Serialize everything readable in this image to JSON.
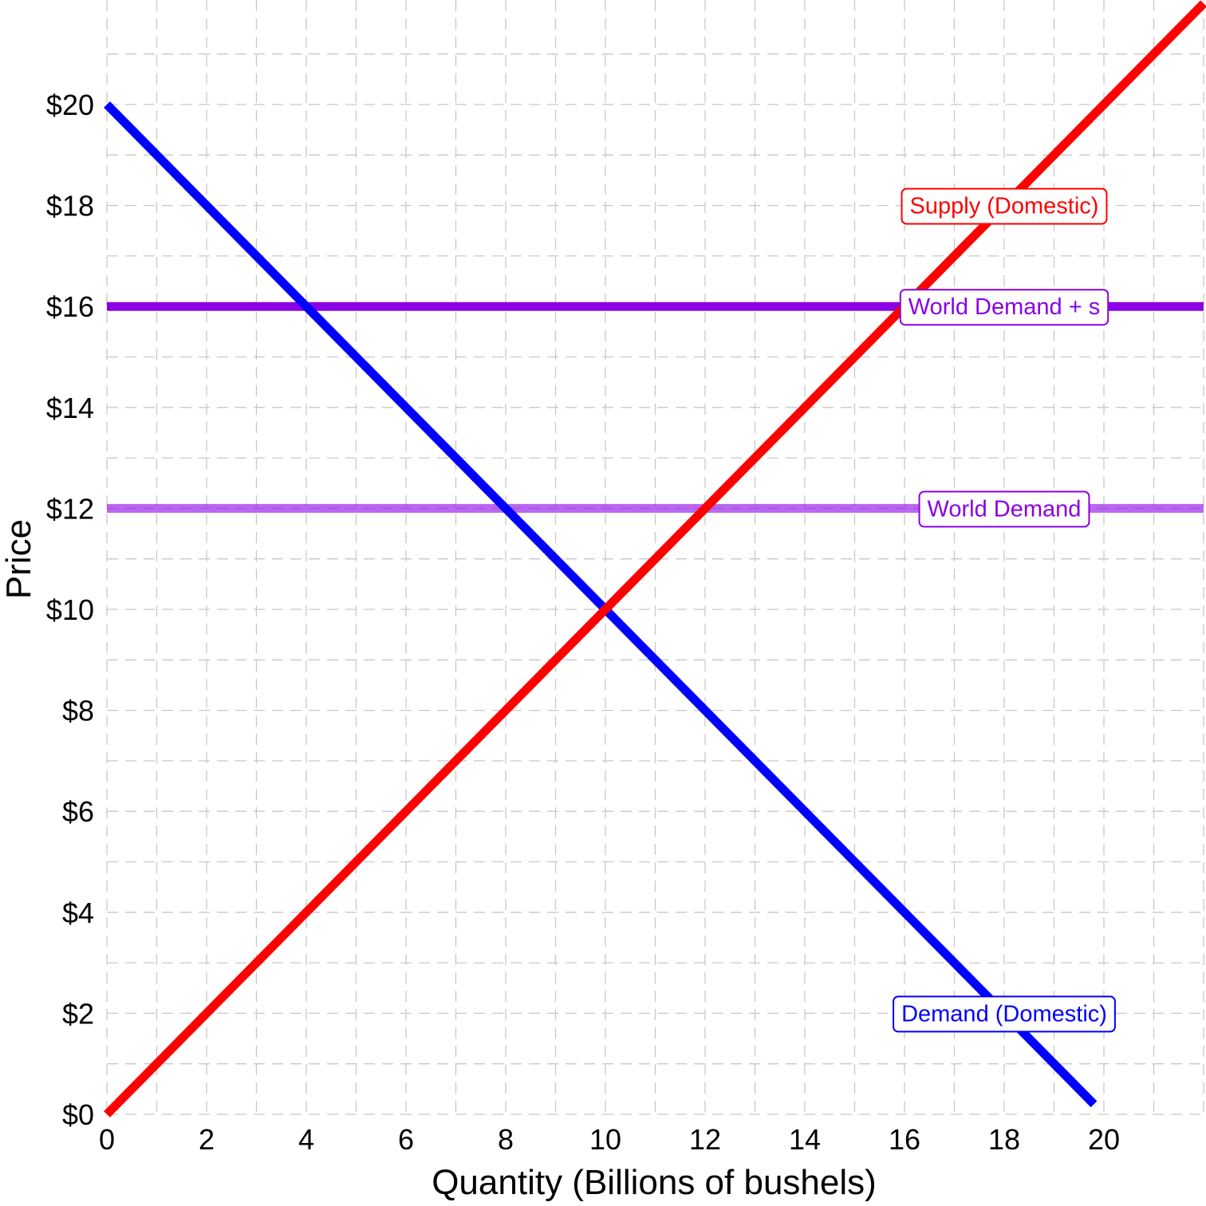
{
  "chart_data": {
    "type": "line",
    "title": "",
    "xlabel": "Quantity (Billions of bushels)",
    "ylabel": "Price",
    "xlim": [
      0,
      22
    ],
    "ylim": [
      0,
      21.5
    ],
    "x_ticks": [
      0,
      2,
      4,
      6,
      8,
      10,
      12,
      14,
      16,
      18,
      20
    ],
    "x_tick_labels": [
      "0",
      "2",
      "4",
      "6",
      "8",
      "10",
      "12",
      "14",
      "16",
      "18",
      "20"
    ],
    "y_ticks": [
      0,
      2,
      4,
      6,
      8,
      10,
      12,
      14,
      16,
      18,
      20
    ],
    "y_tick_labels": [
      "$0",
      "$2",
      "$4",
      "$6",
      "$8",
      "$10",
      "$12",
      "$14",
      "$16",
      "$18",
      "$20"
    ],
    "grid": true,
    "grid_style": "dashed",
    "legend": "none",
    "series": [
      {
        "name": "Supply (Domestic)",
        "color": "#ff0000",
        "x": [
          0,
          22
        ],
        "y": [
          0,
          22
        ],
        "label_at": [
          18,
          18
        ]
      },
      {
        "name": "Demand (Domestic)",
        "color": "#0000ff",
        "x": [
          0,
          19.8
        ],
        "y": [
          20,
          0.2
        ],
        "label_at": [
          18,
          2
        ]
      },
      {
        "name": "World Demand + s",
        "color": "#8a00e6",
        "opacity": 1,
        "x": [
          0,
          22
        ],
        "y": [
          16,
          16
        ],
        "label_at": [
          18,
          16
        ]
      },
      {
        "name": "World Demand",
        "color": "#8a00e6",
        "opacity": 0.6,
        "x": [
          0,
          22
        ],
        "y": [
          12,
          12
        ],
        "label_at": [
          18,
          12
        ]
      }
    ]
  }
}
